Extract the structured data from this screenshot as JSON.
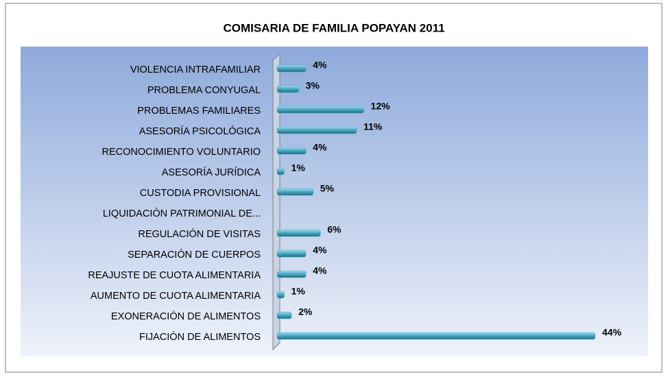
{
  "chart_data": {
    "type": "bar",
    "orientation": "horizontal",
    "title": "COMISARIA DE FAMILIA POPAYAN 2011",
    "categories": [
      "VIOLENCIA  INTRAFAMILIAR",
      "PROBLEMA CONYUGAL",
      "PROBLEMAS  FAMILIARES",
      "ASESORÍA  PSICOLÓGICA",
      "RECONOCIMIENTO VOLUNTARIO",
      "ASESORÍA  JURÍDICA",
      "CUSTODIA  PROVISIONAL",
      "LIQUIDACIÓN PATRIMONIAL DE...",
      "REGULACIÓN DE VISITAS",
      "SEPARACIÓN DE CUERPOS",
      "REAJUSTE DE CUOTA  ALIMENTARIA",
      "AUMENTO DE  CUOTA  ALIMENTARIA",
      "EXONERACIÓN DE ALIMENTOS",
      "FIJACIÓN DE  ALIMENTOS"
    ],
    "values": [
      4,
      3,
      12,
      11,
      4,
      1,
      5,
      null,
      6,
      4,
      4,
      1,
      2,
      44
    ],
    "value_labels": [
      "4%",
      "3%",
      "12%",
      "11%",
      "4%",
      "1%",
      "5%",
      null,
      "6%",
      "4%",
      "4%",
      "1%",
      "2%",
      "44%"
    ],
    "color": "#4bacc6"
  }
}
